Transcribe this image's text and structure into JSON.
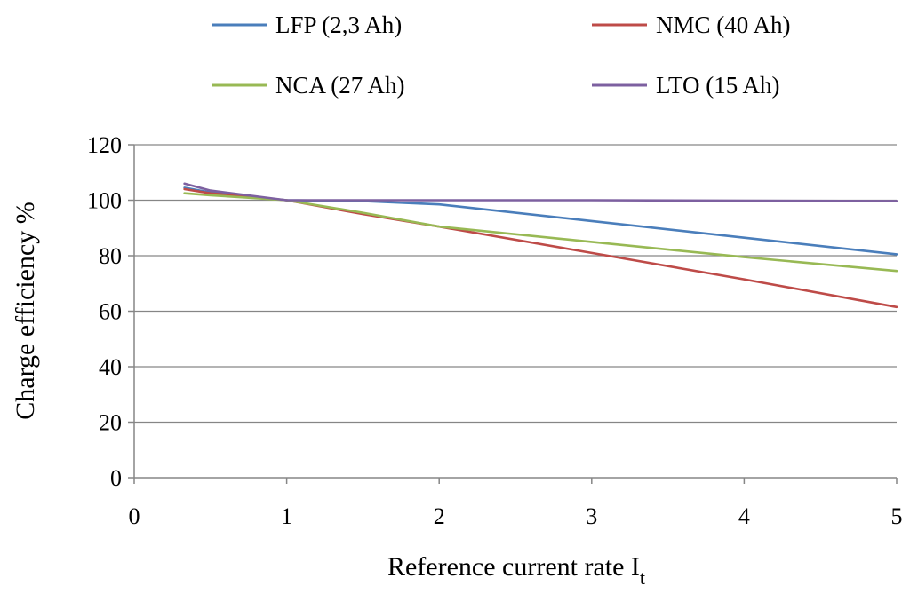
{
  "chart_data": {
    "type": "line",
    "title": "",
    "xlabel": "Reference current rate I",
    "xlabel_subscript": "t",
    "ylabel": "Charge efficiency %",
    "xlim": [
      0,
      5
    ],
    "ylim": [
      0,
      120
    ],
    "x_ticks": [
      0,
      1,
      2,
      3,
      4,
      5
    ],
    "y_ticks": [
      0,
      20,
      40,
      60,
      80,
      100,
      120
    ],
    "grid": "horizontal",
    "legend_position": "top",
    "series": [
      {
        "name": "LFP (2,3 Ah)",
        "color": "#4a7ebb",
        "x": [
          0.33,
          0.5,
          1,
          1.5,
          2,
          3,
          4,
          5
        ],
        "y": [
          104.5,
          102.8,
          100,
          99.7,
          98.5,
          92.5,
          86.5,
          80.5
        ]
      },
      {
        "name": "NMC (40 Ah)",
        "color": "#be4b48",
        "x": [
          0.33,
          0.5,
          1,
          1.5,
          2,
          3,
          4,
          5
        ],
        "y": [
          104,
          102.5,
          100,
          95,
          90.5,
          81,
          71.5,
          61.5
        ]
      },
      {
        "name": "NCA (27 Ah)",
        "color": "#98b954",
        "x": [
          0.33,
          0.5,
          1,
          1.5,
          2,
          3,
          4,
          5
        ],
        "y": [
          102.5,
          101.8,
          100,
          95.5,
          90.5,
          85,
          79.5,
          74.5
        ]
      },
      {
        "name": "LTO (15 Ah)",
        "color": "#7d60a0",
        "x": [
          0.33,
          0.5,
          1,
          1.5,
          2,
          3,
          4,
          5
        ],
        "y": [
          106,
          103.5,
          100,
          100,
          100,
          100,
          99.8,
          99.7
        ]
      }
    ]
  }
}
